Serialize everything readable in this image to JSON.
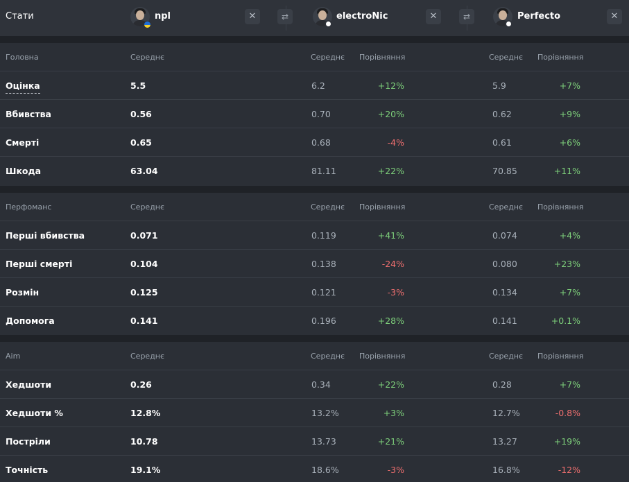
{
  "header": {
    "title": "Стати",
    "players": [
      {
        "name": "npl",
        "badge": "flag-ua-icon"
      },
      {
        "name": "electroNic",
        "badge": "online-dot-icon"
      },
      {
        "name": "Perfecto",
        "badge": "online-dot-icon"
      }
    ],
    "close_glyph": "✕",
    "swap_glyph": "⇄"
  },
  "columns": {
    "average": "Середнє",
    "comparison": "Порівняння"
  },
  "sections": [
    {
      "title": "Головна",
      "rows": [
        {
          "label": "Оцінка",
          "p1": "5.5",
          "p2": "6.2",
          "c2": "+12%",
          "c2s": "pos",
          "p3": "5.9",
          "c3": "+7%",
          "c3s": "pos"
        },
        {
          "label": "Вбивства",
          "p1": "0.56",
          "p2": "0.70",
          "c2": "+20%",
          "c2s": "pos",
          "p3": "0.62",
          "c3": "+9%",
          "c3s": "pos"
        },
        {
          "label": "Смерті",
          "p1": "0.65",
          "p2": "0.68",
          "c2": "-4%",
          "c2s": "neg",
          "p3": "0.61",
          "c3": "+6%",
          "c3s": "pos"
        },
        {
          "label": "Шкода",
          "p1": "63.04",
          "p2": "81.11",
          "c2": "+22%",
          "c2s": "pos",
          "p3": "70.85",
          "c3": "+11%",
          "c3s": "pos"
        }
      ]
    },
    {
      "title": "Перфоманс",
      "rows": [
        {
          "label": "Перші вбивства",
          "p1": "0.071",
          "p2": "0.119",
          "c2": "+41%",
          "c2s": "pos",
          "p3": "0.074",
          "c3": "+4%",
          "c3s": "pos"
        },
        {
          "label": "Перші смерті",
          "p1": "0.104",
          "p2": "0.138",
          "c2": "-24%",
          "c2s": "neg",
          "p3": "0.080",
          "c3": "+23%",
          "c3s": "pos"
        },
        {
          "label": "Розмін",
          "p1": "0.125",
          "p2": "0.121",
          "c2": "-3%",
          "c2s": "neg",
          "p3": "0.134",
          "c3": "+7%",
          "c3s": "pos"
        },
        {
          "label": "Допомога",
          "p1": "0.141",
          "p2": "0.196",
          "c2": "+28%",
          "c2s": "pos",
          "p3": "0.141",
          "c3": "+0.1%",
          "c3s": "pos"
        }
      ]
    },
    {
      "title": "Aim",
      "rows": [
        {
          "label": "Хедшоти",
          "p1": "0.26",
          "p2": "0.34",
          "c2": "+22%",
          "c2s": "pos",
          "p3": "0.28",
          "c3": "+7%",
          "c3s": "pos"
        },
        {
          "label": "Хедшоти %",
          "p1": "12.8%",
          "p2": "13.2%",
          "c2": "+3%",
          "c2s": "pos",
          "p3": "12.7%",
          "c3": "-0.8%",
          "c3s": "neg"
        },
        {
          "label": "Постріли",
          "p1": "10.78",
          "p2": "13.73",
          "c2": "+21%",
          "c2s": "pos",
          "p3": "13.27",
          "c3": "+19%",
          "c3s": "pos"
        },
        {
          "label": "Точність",
          "p1": "19.1%",
          "p2": "18.6%",
          "c2": "-3%",
          "c2s": "neg",
          "p3": "16.8%",
          "c3": "-12%",
          "c3s": "neg"
        }
      ]
    }
  ],
  "colors": {
    "positive": "#7ed07b",
    "negative": "#ef6f6f",
    "background": "#2b2f36"
  }
}
